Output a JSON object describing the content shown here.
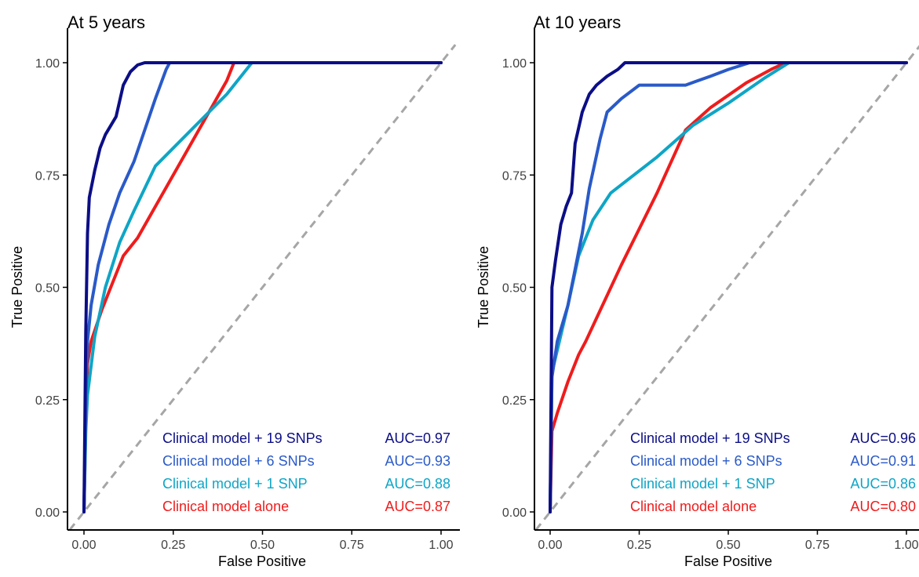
{
  "colors": {
    "ref_line": "#a6a6a6",
    "axis": "#000000",
    "tick_text": "#404040"
  },
  "chart_data": [
    {
      "type": "line",
      "title": "At 5 years",
      "xlabel": "False Positive",
      "ylabel": "True Positive",
      "xlim": [
        0,
        1
      ],
      "ylim": [
        0,
        1
      ],
      "xticks": [
        "0.00",
        "0.25",
        "0.50",
        "0.75",
        "1.00"
      ],
      "yticks": [
        "0.00",
        "0.25",
        "0.50",
        "0.75",
        "1.00"
      ],
      "grid": false,
      "reference_line": "diagonal dashed",
      "legend_position": "bottom-right",
      "series": [
        {
          "name": "Clinical model + 19 SNPs",
          "auc": "AUC=0.97",
          "color": "#0c0e86",
          "points": [
            [
              0,
              0
            ],
            [
              0.005,
              0.4
            ],
            [
              0.01,
              0.62
            ],
            [
              0.015,
              0.7
            ],
            [
              0.03,
              0.76
            ],
            [
              0.045,
              0.81
            ],
            [
              0.06,
              0.84
            ],
            [
              0.09,
              0.88
            ],
            [
              0.11,
              0.95
            ],
            [
              0.13,
              0.98
            ],
            [
              0.15,
              0.995
            ],
            [
              0.17,
              1.0
            ],
            [
              1.0,
              1.0
            ]
          ]
        },
        {
          "name": "Clinical model + 6 SNPs",
          "auc": "AUC=0.93",
          "color": "#2a5ac8",
          "points": [
            [
              0,
              0
            ],
            [
              0.005,
              0.25
            ],
            [
              0.01,
              0.38
            ],
            [
              0.02,
              0.46
            ],
            [
              0.04,
              0.55
            ],
            [
              0.07,
              0.64
            ],
            [
              0.1,
              0.71
            ],
            [
              0.14,
              0.78
            ],
            [
              0.17,
              0.85
            ],
            [
              0.2,
              0.92
            ],
            [
              0.23,
              0.985
            ],
            [
              0.24,
              1.0
            ],
            [
              1.0,
              1.0
            ]
          ]
        },
        {
          "name": "Clinical model + 1 SNP",
          "auc": "AUC=0.88",
          "color": "#0ea5c6",
          "points": [
            [
              0,
              0
            ],
            [
              0.005,
              0.18
            ],
            [
              0.01,
              0.26
            ],
            [
              0.03,
              0.39
            ],
            [
              0.06,
              0.5
            ],
            [
              0.1,
              0.6
            ],
            [
              0.14,
              0.67
            ],
            [
              0.17,
              0.72
            ],
            [
              0.2,
              0.77
            ],
            [
              0.3,
              0.85
            ],
            [
              0.4,
              0.93
            ],
            [
              0.47,
              1.0
            ],
            [
              1.0,
              1.0
            ]
          ]
        },
        {
          "name": "Clinical model alone",
          "auc": "AUC=0.87",
          "color": "#ef1c1c",
          "points": [
            [
              0,
              0
            ],
            [
              0.005,
              0.2
            ],
            [
              0.01,
              0.33
            ],
            [
              0.02,
              0.38
            ],
            [
              0.05,
              0.45
            ],
            [
              0.08,
              0.51
            ],
            [
              0.11,
              0.57
            ],
            [
              0.15,
              0.61
            ],
            [
              0.2,
              0.68
            ],
            [
              0.3,
              0.82
            ],
            [
              0.4,
              0.96
            ],
            [
              0.42,
              1.0
            ],
            [
              1.0,
              1.0
            ]
          ]
        }
      ]
    },
    {
      "type": "line",
      "title": "At 10 years",
      "xlabel": "False Positive",
      "ylabel": "True Positive",
      "xlim": [
        0,
        1
      ],
      "ylim": [
        0,
        1
      ],
      "xticks": [
        "0.00",
        "0.25",
        "0.50",
        "0.75",
        "1.00"
      ],
      "yticks": [
        "0.00",
        "0.25",
        "0.50",
        "0.75",
        "1.00"
      ],
      "grid": false,
      "reference_line": "diagonal dashed",
      "legend_position": "bottom-right",
      "series": [
        {
          "name": "Clinical model + 19 SNPs",
          "auc": "AUC=0.96",
          "color": "#0c0e86",
          "points": [
            [
              0,
              0
            ],
            [
              0.005,
              0.5
            ],
            [
              0.015,
              0.56
            ],
            [
              0.03,
              0.64
            ],
            [
              0.045,
              0.68
            ],
            [
              0.06,
              0.71
            ],
            [
              0.07,
              0.82
            ],
            [
              0.09,
              0.89
            ],
            [
              0.11,
              0.93
            ],
            [
              0.13,
              0.95
            ],
            [
              0.16,
              0.97
            ],
            [
              0.19,
              0.985
            ],
            [
              0.21,
              1.0
            ],
            [
              1.0,
              1.0
            ]
          ]
        },
        {
          "name": "Clinical model + 6 SNPs",
          "auc": "AUC=0.91",
          "color": "#2a5ac8",
          "points": [
            [
              0,
              0
            ],
            [
              0.005,
              0.3
            ],
            [
              0.02,
              0.38
            ],
            [
              0.05,
              0.46
            ],
            [
              0.07,
              0.54
            ],
            [
              0.09,
              0.62
            ],
            [
              0.11,
              0.72
            ],
            [
              0.14,
              0.83
            ],
            [
              0.16,
              0.89
            ],
            [
              0.2,
              0.92
            ],
            [
              0.25,
              0.95
            ],
            [
              0.38,
              0.95
            ],
            [
              0.45,
              0.97
            ],
            [
              0.5,
              0.985
            ],
            [
              0.56,
              1.0
            ],
            [
              1.0,
              1.0
            ]
          ]
        },
        {
          "name": "Clinical model + 1 SNP",
          "auc": "AUC=0.86",
          "color": "#0ea5c6",
          "points": [
            [
              0,
              0
            ],
            [
              0.005,
              0.31
            ],
            [
              0.02,
              0.36
            ],
            [
              0.05,
              0.46
            ],
            [
              0.08,
              0.57
            ],
            [
              0.12,
              0.65
            ],
            [
              0.17,
              0.71
            ],
            [
              0.3,
              0.79
            ],
            [
              0.4,
              0.86
            ],
            [
              0.5,
              0.91
            ],
            [
              0.6,
              0.965
            ],
            [
              0.67,
              1.0
            ],
            [
              1.0,
              1.0
            ]
          ]
        },
        {
          "name": "Clinical model alone",
          "auc": "AUC=0.80",
          "color": "#ef1c1c",
          "points": [
            [
              0,
              0
            ],
            [
              0.005,
              0.18
            ],
            [
              0.02,
              0.22
            ],
            [
              0.05,
              0.29
            ],
            [
              0.08,
              0.35
            ],
            [
              0.1,
              0.38
            ],
            [
              0.2,
              0.55
            ],
            [
              0.3,
              0.71
            ],
            [
              0.38,
              0.85
            ],
            [
              0.45,
              0.9
            ],
            [
              0.55,
              0.955
            ],
            [
              0.62,
              0.985
            ],
            [
              0.66,
              1.0
            ],
            [
              1.0,
              1.0
            ]
          ]
        }
      ]
    }
  ]
}
